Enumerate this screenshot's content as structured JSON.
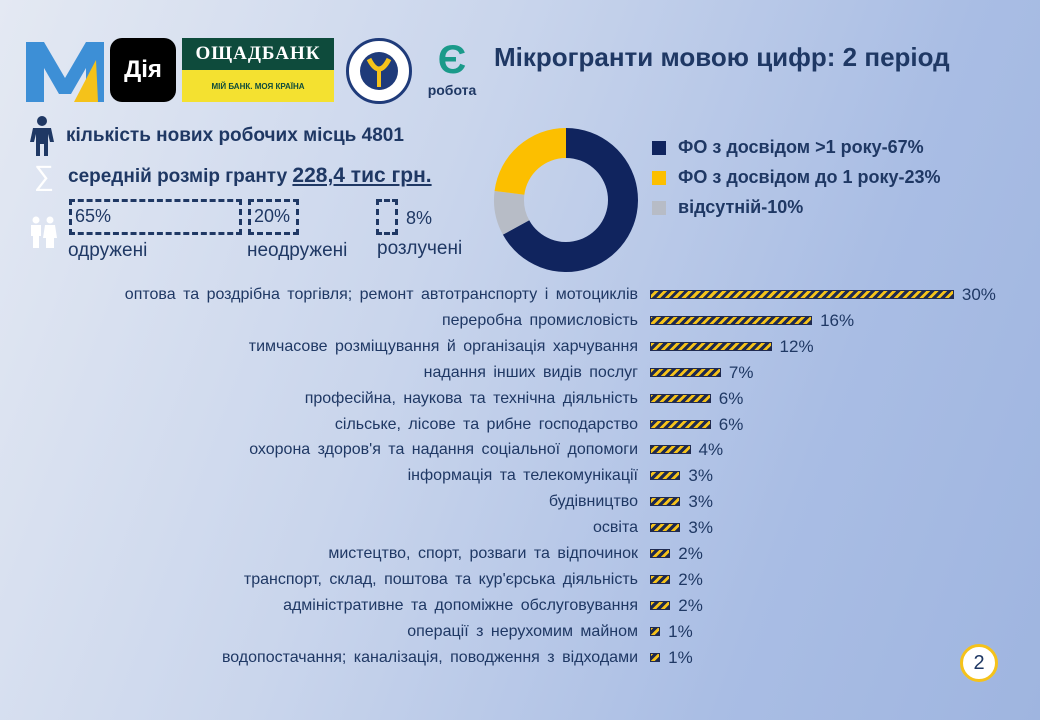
{
  "header": {
    "title": "Мікрогранти мовою цифр: 2 період",
    "logos": {
      "diia": "Дія",
      "oschadbank_top": "ОЩАДБАНК",
      "oschadbank_bottom": "МІЙ БАНК. МОЯ КРАЇНА",
      "dsz": "ДЕРЖАВНА СЛУЖБА ЗАЙНЯТОСТІ",
      "erobota": "робота",
      "erobota_mark": "Є"
    }
  },
  "stats": {
    "jobs": "кількість нових робочих місць 4801",
    "grant_label": "середній розмір гранту ",
    "grant_value": "228,4 тис грн."
  },
  "marital": [
    {
      "pct": "65%",
      "label": "одружені",
      "value": 65
    },
    {
      "pct": "20%",
      "label": "неодружені",
      "value": 20
    },
    {
      "pct": "8%",
      "label": "розлучені",
      "value": 8
    }
  ],
  "chart_data": [
    {
      "type": "pie",
      "subtype": "donut",
      "slices": [
        {
          "label": "ФО з досвідом >1 року-67%",
          "value": 67,
          "color": "#10245e"
        },
        {
          "label": "відсутній-10%",
          "value": 10,
          "color": "#b7bcc6"
        },
        {
          "label": "ФО з досвідом до 1 року-23%",
          "value": 23,
          "color": "#fcbf00"
        }
      ],
      "legend_order": [
        0,
        2,
        1
      ],
      "legend": "right"
    },
    {
      "type": "bar",
      "orientation": "horizontal",
      "unit": "%",
      "categories": [
        "оптова та роздрібна торгівля; ремонт автотранспорту і мотоциклів",
        "переробна промисловість",
        "тимчасове розміщування й організація харчування",
        "надання інших видів послуг",
        "професійна, наукова та технічна діяльність",
        "сільське, лісове та рибне господарство",
        "охорона здоров'я та надання соціальної допомоги",
        "інформація та телекомунікації",
        "будівництво",
        "освіта",
        "мистецтво, спорт, розваги та відпочинок",
        "транспорт, склад, поштова та кур'єрська діяльність",
        "адміністративне та допоміжне обслуговування",
        "операції з нерухомим майном",
        "водопостачання; каналізація, поводження з відходами"
      ],
      "values": [
        30,
        16,
        12,
        7,
        6,
        6,
        4,
        3,
        3,
        3,
        2,
        2,
        2,
        1,
        1
      ],
      "labels": [
        "30%",
        "16%",
        "12%",
        "7%",
        "6%",
        "6%",
        "4%",
        "3%",
        "3%",
        "3%",
        "2%",
        "2%",
        "2%",
        "1%",
        "1%"
      ]
    }
  ],
  "page_number": "2"
}
